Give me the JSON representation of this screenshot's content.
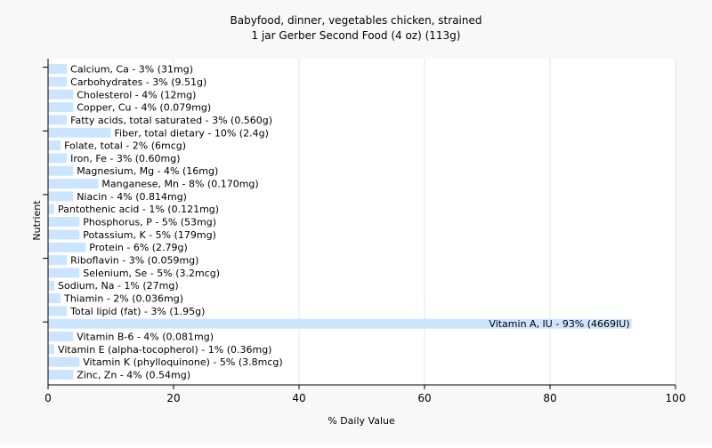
{
  "chart_data": {
    "type": "bar",
    "orientation": "horizontal",
    "title": "Babyfood, dinner, vegetables chicken, strained",
    "subtitle": "1 jar Gerber Second Food (4 oz) (113g)",
    "xlabel": "% Daily Value",
    "ylabel": "Nutrient",
    "xlim": [
      0,
      100
    ],
    "xticks": [
      0,
      20,
      40,
      60,
      80,
      100
    ],
    "grid": "vertical",
    "bar_color": "#cce5ff",
    "categories": [
      "Calcium, Ca",
      "Carbohydrates",
      "Cholesterol",
      "Copper, Cu",
      "Fatty acids, total saturated",
      "Fiber, total dietary",
      "Folate, total",
      "Iron, Fe",
      "Magnesium, Mg",
      "Manganese, Mn",
      "Niacin",
      "Pantothenic acid",
      "Phosphorus, P",
      "Potassium, K",
      "Protein",
      "Riboflavin",
      "Selenium, Se",
      "Sodium, Na",
      "Thiamin",
      "Total lipid (fat)",
      "Vitamin A, IU",
      "Vitamin B-6",
      "Vitamin E (alpha-tocopherol)",
      "Vitamin K (phylloquinone)",
      "Zinc, Zn"
    ],
    "values": [
      3,
      3,
      4,
      4,
      3,
      10,
      2,
      3,
      4,
      8,
      4,
      1,
      5,
      5,
      6,
      3,
      5,
      1,
      2,
      3,
      93,
      4,
      1,
      5,
      4
    ],
    "labels": [
      "Calcium, Ca - 3% (31mg)",
      "Carbohydrates - 3% (9.51g)",
      "Cholesterol - 4% (12mg)",
      "Copper, Cu - 4% (0.079mg)",
      "Fatty acids, total saturated - 3% (0.560g)",
      "Fiber, total dietary - 10% (2.4g)",
      "Folate, total - 2% (6mcg)",
      "Iron, Fe - 3% (0.60mg)",
      "Magnesium, Mg - 4% (16mg)",
      "Manganese, Mn - 8% (0.170mg)",
      "Niacin - 4% (0.814mg)",
      "Pantothenic acid - 1% (0.121mg)",
      "Phosphorus, P - 5% (53mg)",
      "Potassium, K - 5% (179mg)",
      "Protein - 6% (2.79g)",
      "Riboflavin - 3% (0.059mg)",
      "Selenium, Se - 5% (3.2mcg)",
      "Sodium, Na - 1% (27mg)",
      "Thiamin - 2% (0.036mg)",
      "Total lipid (fat) - 3% (1.95g)",
      "Vitamin A, IU - 93% (4669IU)",
      "Vitamin B-6 - 4% (0.081mg)",
      "Vitamin E (alpha-tocopherol) - 1% (0.36mg)",
      "Vitamin K (phylloquinone) - 5% (3.8mcg)",
      "Zinc, Zn - 4% (0.54mg)"
    ]
  }
}
